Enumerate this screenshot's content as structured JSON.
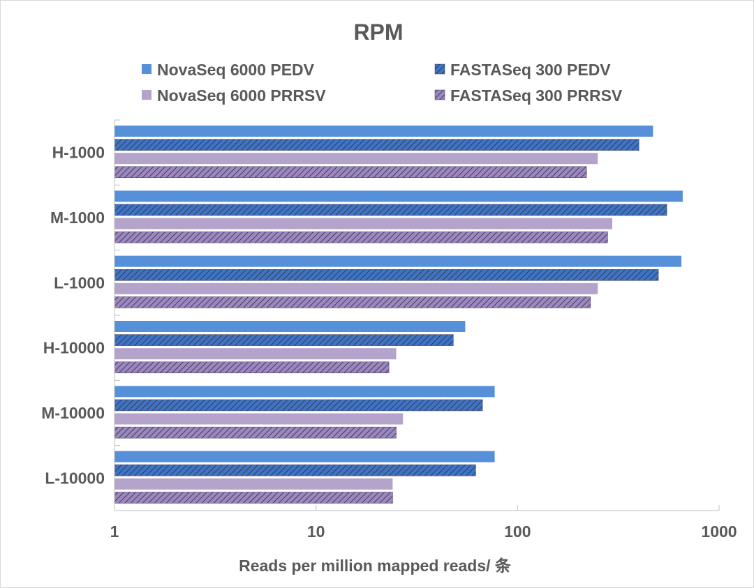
{
  "chart_data": {
    "type": "bar",
    "orientation": "horizontal",
    "title": "RPM",
    "xlabel": "Reads per million mapped reads/ 条",
    "ylabel": "",
    "xscale": "log",
    "xlim": [
      1,
      1000
    ],
    "xticks": [
      1,
      10,
      100,
      1000
    ],
    "xtick_labels": [
      "1",
      "10",
      "100",
      "1000"
    ],
    "grid": false,
    "legend_position": "top",
    "categories": [
      "H-1000",
      "M-1000",
      "L-1000",
      "H-10000",
      "M-10000",
      "L-10000"
    ],
    "series": [
      {
        "name": "NovaSeq 6000 PEDV",
        "color": "#5590d9",
        "pattern": "solid",
        "values": [
          470,
          660,
          650,
          55,
          77,
          77
        ]
      },
      {
        "name": "FASTASeq 300 PEDV",
        "color": "#3f74c5",
        "pattern": "hatched",
        "values": [
          400,
          550,
          500,
          48,
          67,
          62
        ]
      },
      {
        "name": "NovaSeq 6000 PRRSV",
        "color": "#b4a3cb",
        "pattern": "solid",
        "values": [
          250,
          295,
          250,
          25,
          27,
          24
        ]
      },
      {
        "name": "FASTASeq 300 PRRSV",
        "color": "#9c87c0",
        "pattern": "hatched",
        "values": [
          220,
          280,
          230,
          23,
          25,
          24
        ]
      }
    ]
  }
}
